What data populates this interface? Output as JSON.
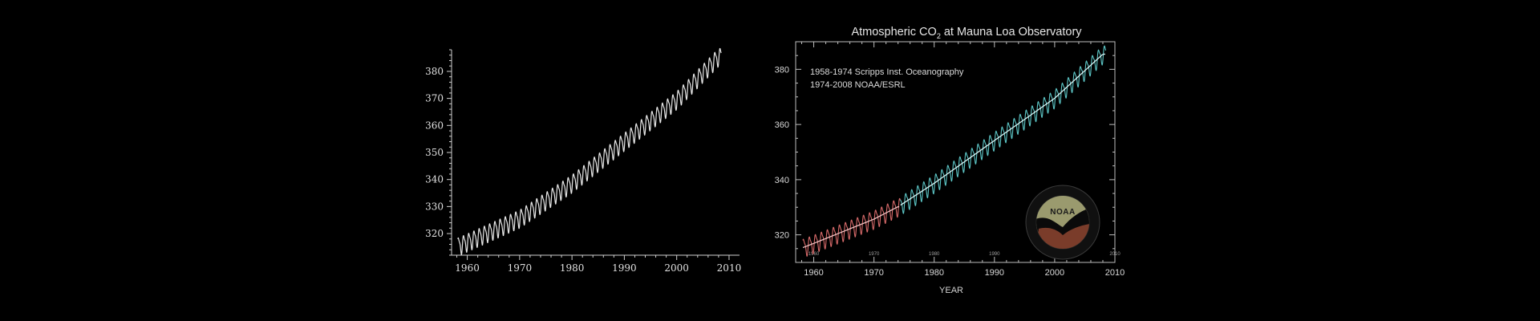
{
  "chart_data": [
    {
      "type": "line",
      "title": "",
      "xlabel": "",
      "ylabel": "",
      "xlim": [
        1957,
        2012
      ],
      "ylim": [
        312,
        388
      ],
      "x_ticks": [
        1960,
        1970,
        1980,
        1990,
        2000,
        2010
      ],
      "y_ticks": [
        320,
        330,
        340,
        350,
        360,
        370,
        380
      ],
      "grid": false,
      "series": [
        {
          "x_start": 1958.2,
          "x_end": 2008.5,
          "trend": [
            {
              "year": 1958,
              "co2": 315.2
            },
            {
              "year": 1960,
              "co2": 316.9
            },
            {
              "year": 1970,
              "co2": 325.7
            },
            {
              "year": 1980,
              "co2": 338.7
            },
            {
              "year": 1990,
              "co2": 354.2
            },
            {
              "year": 2000,
              "co2": 369.5
            },
            {
              "year": 2008,
              "co2": 385.5
            }
          ],
          "seasonal_amplitude": 3.0,
          "color": "#e8e8e8"
        }
      ]
    },
    {
      "type": "line",
      "title": "Atmospheric CO",
      "title_sub": "2",
      "title_suffix": " at Mauna Loa Observatory",
      "xlabel": "YEAR",
      "ylabel": "",
      "xlim": [
        1957,
        2010
      ],
      "ylim": [
        310,
        390
      ],
      "x_ticks": [
        1960,
        1970,
        1980,
        1990,
        2000,
        2010
      ],
      "x_ticks_inner": [
        1960,
        1970,
        1980,
        1990,
        2000,
        2010
      ],
      "y_ticks": [
        320,
        340,
        360,
        380
      ],
      "grid": false,
      "legend": {
        "placement": "top-left",
        "lines": [
          "1958-1974 Scripps Inst. Oceanography",
          "1974-2008 NOAA/ESRL"
        ]
      },
      "series": [
        {
          "x_start": 1958.2,
          "x_end": 1974.4,
          "trend": [
            {
              "year": 1958,
              "co2": 315.2
            },
            {
              "year": 1960,
              "co2": 316.9
            },
            {
              "year": 1970,
              "co2": 325.7
            },
            {
              "year": 1974,
              "co2": 330.2
            }
          ],
          "seasonal_amplitude": 3.0,
          "color": "#d86a6a",
          "trend_color": "#f0c0c0"
        },
        {
          "x_start": 1974.4,
          "x_end": 2008.5,
          "trend": [
            {
              "year": 1974,
              "co2": 330.2
            },
            {
              "year": 1980,
              "co2": 338.7
            },
            {
              "year": 1990,
              "co2": 354.2
            },
            {
              "year": 2000,
              "co2": 369.5
            },
            {
              "year": 2008,
              "co2": 385.5
            }
          ],
          "seasonal_amplitude": 3.0,
          "color": "#5cc6c6",
          "trend_color": "#d8f4f4"
        }
      ],
      "logo": {
        "text": "NOAA",
        "colors": {
          "sky": "#9a9a6e",
          "ground": "#7a3c2a",
          "ring": "#101010"
        }
      }
    }
  ]
}
